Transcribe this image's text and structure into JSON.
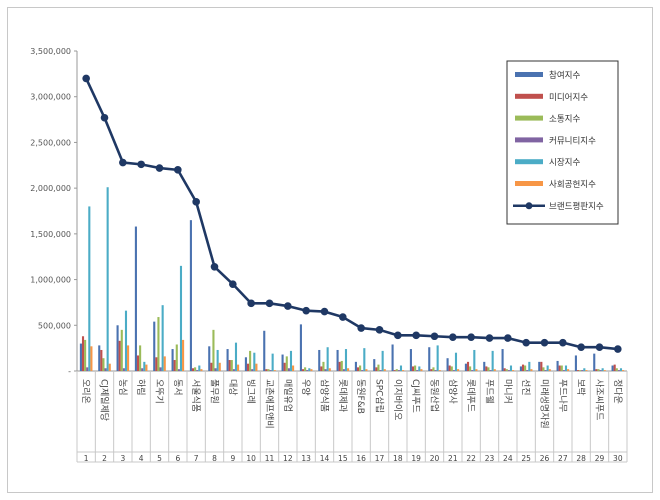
{
  "chart_data": {
    "type": "bar",
    "title": "",
    "xlabel": "",
    "ylabel": "",
    "ylim": [
      0,
      3500000
    ],
    "yticks": [
      0,
      500000,
      1000000,
      1500000,
      2000000,
      2500000,
      3000000,
      3500000
    ],
    "ytick_labels": [
      "-",
      "500,000",
      "1,000,000",
      "1,500,000",
      "2,000,000",
      "2,500,000",
      "3,000,000",
      "3,500,000"
    ],
    "grid": false,
    "legend_position": "top-right",
    "ranks": [
      "1",
      "2",
      "3",
      "4",
      "5",
      "6",
      "7",
      "8",
      "9",
      "10",
      "11",
      "12",
      "13",
      "14",
      "15",
      "16",
      "17",
      "18",
      "19",
      "20",
      "21",
      "22",
      "23",
      "24",
      "25",
      "26",
      "27",
      "28",
      "29",
      "30"
    ],
    "categories": [
      "오리온",
      "CJ제일제당",
      "농심",
      "하림",
      "오뚜기",
      "동서",
      "서울식품",
      "풀무원",
      "대상",
      "빙그레",
      "교촌에프앤비",
      "매일유업",
      "우양",
      "삼양식품",
      "롯데제과",
      "동원F&B",
      "SPC삼립",
      "이지바이오",
      "CJ씨푸드",
      "동원산업",
      "삼양사",
      "롯데푸드",
      "푸드웰",
      "마니커",
      "선진",
      "미래생명자원",
      "푸드나무",
      "보락",
      "사조씨푸드",
      "정다운"
    ],
    "series": [
      {
        "name": "참여지수",
        "color": "#4a72b0",
        "values": [
          300000,
          280000,
          500000,
          1580000,
          540000,
          240000,
          1650000,
          270000,
          240000,
          150000,
          440000,
          180000,
          510000,
          230000,
          230000,
          100000,
          130000,
          290000,
          240000,
          260000,
          140000,
          80000,
          100000,
          240000,
          50000,
          100000,
          110000,
          170000,
          190000,
          60000
        ]
      },
      {
        "name": "미디어지수",
        "color": "#c0504d",
        "values": [
          380000,
          230000,
          330000,
          170000,
          150000,
          120000,
          30000,
          90000,
          120000,
          80000,
          20000,
          90000,
          20000,
          50000,
          100000,
          40000,
          40000,
          10000,
          50000,
          20000,
          60000,
          100000,
          50000,
          30000,
          70000,
          100000,
          60000,
          10000,
          20000,
          70000
        ]
      },
      {
        "name": "소통지수",
        "color": "#9bbb59",
        "values": [
          340000,
          140000,
          450000,
          280000,
          590000,
          290000,
          40000,
          450000,
          120000,
          220000,
          20000,
          160000,
          40000,
          100000,
          110000,
          60000,
          70000,
          20000,
          60000,
          40000,
          50000,
          50000,
          40000,
          20000,
          60000,
          40000,
          60000,
          10000,
          20000,
          30000
        ]
      },
      {
        "name": "커뮤니티지수",
        "color": "#8064a2",
        "values": [
          40000,
          30000,
          30000,
          30000,
          40000,
          20000,
          10000,
          30000,
          20000,
          20000,
          10000,
          30000,
          10000,
          20000,
          20000,
          10000,
          10000,
          10000,
          10000,
          10000,
          10000,
          10000,
          10000,
          10000,
          10000,
          10000,
          10000,
          10000,
          10000,
          10000
        ]
      },
      {
        "name": "시장지수",
        "color": "#4bacc6",
        "values": [
          1800000,
          2010000,
          660000,
          100000,
          720000,
          1150000,
          60000,
          230000,
          310000,
          200000,
          190000,
          220000,
          30000,
          260000,
          240000,
          250000,
          220000,
          60000,
          50000,
          280000,
          200000,
          230000,
          220000,
          60000,
          100000,
          60000,
          60000,
          30000,
          30000,
          30000
        ]
      },
      {
        "name": "사회공헌지수",
        "color": "#f79646",
        "values": [
          270000,
          80000,
          280000,
          70000,
          160000,
          340000,
          20000,
          90000,
          70000,
          80000,
          10000,
          60000,
          20000,
          30000,
          30000,
          20000,
          20000,
          10000,
          20000,
          10000,
          20000,
          20000,
          20000,
          10000,
          20000,
          20000,
          20000,
          10000,
          10000,
          10000
        ]
      }
    ],
    "line_series": {
      "name": "브랜드평판지수",
      "color": "#1f3864",
      "values": [
        3200000,
        2770000,
        2280000,
        2260000,
        2220000,
        2200000,
        1850000,
        1140000,
        950000,
        740000,
        740000,
        710000,
        660000,
        650000,
        590000,
        470000,
        450000,
        390000,
        390000,
        380000,
        370000,
        370000,
        360000,
        360000,
        310000,
        310000,
        310000,
        260000,
        260000,
        240000
      ]
    }
  }
}
